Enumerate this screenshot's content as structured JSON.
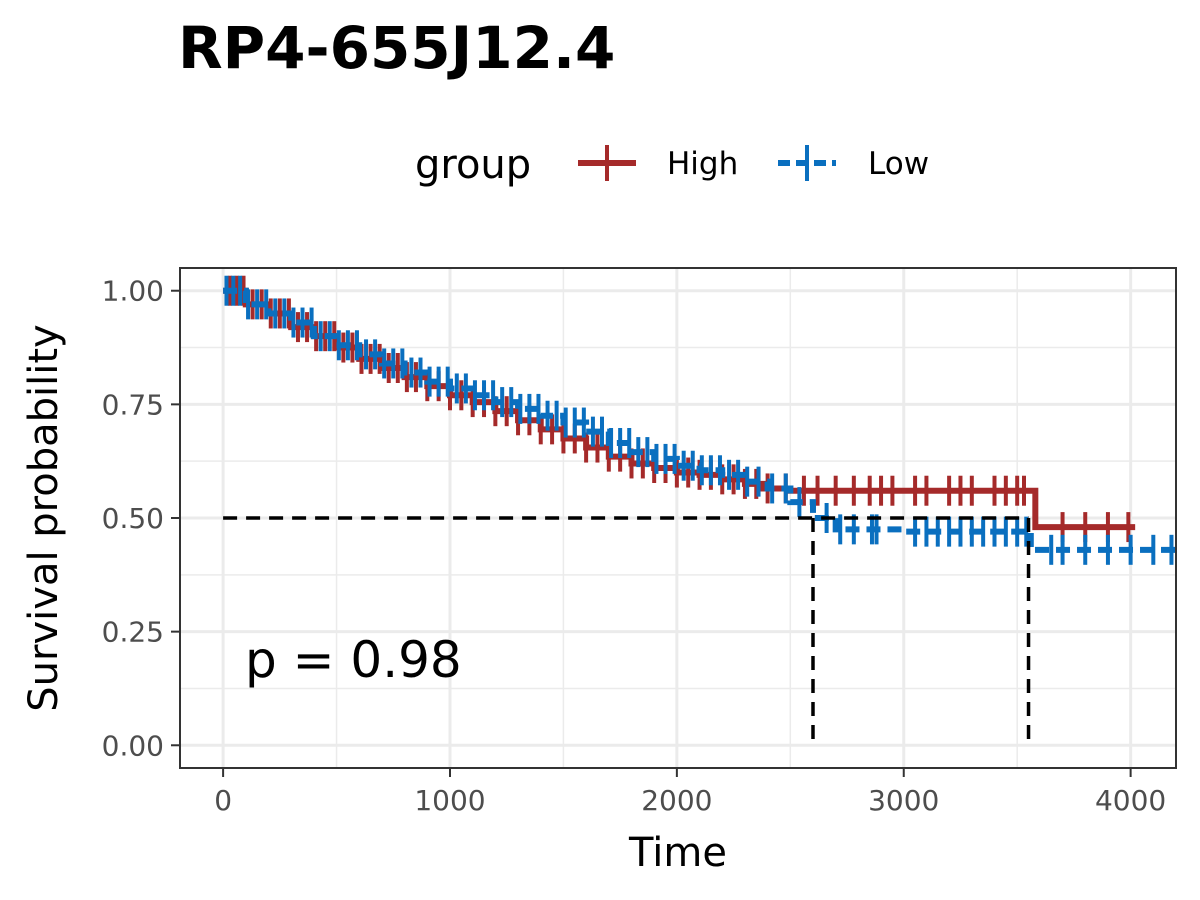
{
  "chart_data": {
    "type": "line",
    "subtype": "kaplan-meier",
    "title": "RP4-655J12.4",
    "xlabel": "Time",
    "ylabel": "Survival probability",
    "xlim": [
      -190,
      4200
    ],
    "ylim": [
      -0.05,
      1.05
    ],
    "x_ticks": [
      0,
      1000,
      2000,
      3000,
      4000
    ],
    "y_ticks": [
      0.0,
      0.25,
      0.5,
      0.75,
      1.0
    ],
    "x_tick_labels": [
      "0",
      "1000",
      "2000",
      "3000",
      "4000"
    ],
    "y_tick_labels": [
      "0.00",
      "0.25",
      "0.50",
      "0.75",
      "1.00"
    ],
    "grid": true,
    "legend": {
      "title": "group",
      "placement": "top",
      "entries": [
        "High",
        "Low"
      ]
    },
    "annotation": "p = 0.98",
    "median_line": {
      "y": 0.5,
      "x_values": [
        2600,
        3550
      ]
    },
    "series": [
      {
        "name": "High",
        "color": "#a52a2a",
        "x": [
          0,
          100,
          200,
          300,
          400,
          500,
          600,
          700,
          800,
          900,
          1000,
          1100,
          1200,
          1300,
          1400,
          1500,
          1600,
          1700,
          1800,
          1900,
          2000,
          2100,
          2200,
          2300,
          2380,
          2500,
          3580,
          4020
        ],
        "y": [
          1.0,
          0.97,
          0.95,
          0.92,
          0.9,
          0.875,
          0.85,
          0.83,
          0.81,
          0.79,
          0.77,
          0.755,
          0.735,
          0.715,
          0.695,
          0.675,
          0.655,
          0.635,
          0.62,
          0.61,
          0.6,
          0.595,
          0.585,
          0.575,
          0.565,
          0.56,
          0.48,
          0.48
        ],
        "censor_x": [
          30,
          60,
          90,
          130,
          170,
          210,
          250,
          290,
          330,
          370,
          410,
          450,
          490,
          530,
          570,
          610,
          650,
          690,
          730,
          770,
          810,
          850,
          900,
          950,
          1000,
          1050,
          1100,
          1150,
          1200,
          1250,
          1300,
          1350,
          1400,
          1450,
          1500,
          1550,
          1600,
          1650,
          1700,
          1750,
          1800,
          1850,
          1900,
          1950,
          2000,
          2050,
          2100,
          2150,
          2200,
          2250,
          2300,
          2350,
          2400,
          2480,
          2560,
          2620,
          2700,
          2780,
          2850,
          2900,
          2950,
          3050,
          3100,
          3200,
          3250,
          3300,
          3400,
          3450,
          3500,
          3530,
          3700,
          3800,
          3900,
          3990
        ]
      },
      {
        "name": "Low",
        "color": "#0a6fbf",
        "x": [
          0,
          100,
          200,
          300,
          400,
          500,
          600,
          700,
          800,
          900,
          1000,
          1100,
          1200,
          1300,
          1400,
          1500,
          1600,
          1700,
          1800,
          1900,
          2000,
          2100,
          2200,
          2300,
          2400,
          2500,
          2600,
          2700,
          3000,
          3560,
          4200
        ],
        "y": [
          1.0,
          0.97,
          0.95,
          0.93,
          0.9,
          0.88,
          0.86,
          0.84,
          0.82,
          0.8,
          0.785,
          0.77,
          0.755,
          0.74,
          0.725,
          0.71,
          0.69,
          0.665,
          0.645,
          0.63,
          0.615,
          0.605,
          0.595,
          0.58,
          0.565,
          0.535,
          0.5,
          0.475,
          0.47,
          0.43,
          0.43
        ],
        "censor_x": [
          15,
          45,
          75,
          110,
          150,
          190,
          230,
          270,
          310,
          350,
          390,
          430,
          470,
          510,
          550,
          590,
          630,
          670,
          710,
          750,
          790,
          830,
          870,
          910,
          950,
          990,
          1030,
          1070,
          1110,
          1150,
          1190,
          1230,
          1270,
          1310,
          1350,
          1390,
          1430,
          1470,
          1510,
          1550,
          1590,
          1630,
          1670,
          1710,
          1750,
          1790,
          1830,
          1870,
          1910,
          1950,
          1990,
          2030,
          2070,
          2110,
          2150,
          2190,
          2230,
          2270,
          2310,
          2360,
          2420,
          2480,
          2540,
          2660,
          2720,
          2780,
          2860,
          2880,
          3050,
          3100,
          3150,
          3200,
          3250,
          3300,
          3350,
          3400,
          3450,
          3500,
          3540,
          3650,
          3700,
          3800,
          3900,
          4000,
          4100,
          4180
        ]
      }
    ]
  }
}
